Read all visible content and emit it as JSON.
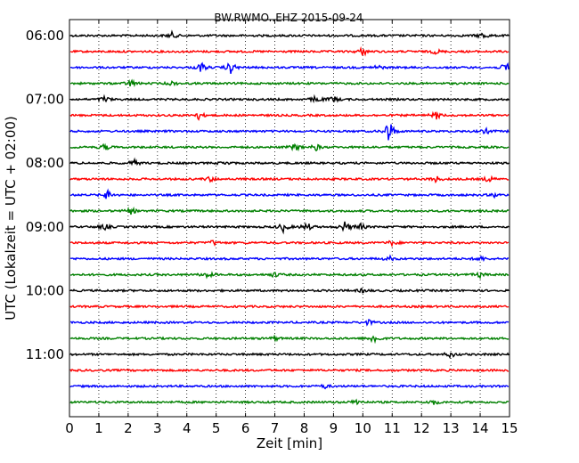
{
  "chart_data": {
    "type": "line",
    "title": "BW.RWMO..EHZ 2015-09-24",
    "xlabel": "Zeit  [min]",
    "ylabel": "UTC (Lokalzeit = UTC + 02:00)",
    "xlim": [
      0,
      15
    ],
    "x_ticks": [
      "0",
      "1",
      "2",
      "3",
      "4",
      "5",
      "6",
      "7",
      "8",
      "9",
      "10",
      "11",
      "12",
      "13",
      "14",
      "15"
    ],
    "y_tick_labels": [
      "06:00",
      "07:00",
      "08:00",
      "09:00",
      "10:00",
      "11:00"
    ],
    "grid": "vertical dotted",
    "trace_interval_min": 15,
    "colors": [
      "#000000",
      "#ff0000",
      "#0000ff",
      "#008000"
    ],
    "series": [
      {
        "start": "06:00",
        "events": [
          [
            3.5,
            0.5
          ],
          [
            14.1,
            0.6
          ]
        ]
      },
      {
        "start": "06:15",
        "events": [
          [
            10.0,
            0.7
          ],
          [
            12.5,
            0.4
          ]
        ]
      },
      {
        "start": "06:30",
        "events": [
          [
            4.5,
            0.8
          ],
          [
            5.5,
            1.0
          ],
          [
            14.9,
            0.9
          ],
          [
            10.5,
            0.4
          ]
        ]
      },
      {
        "start": "06:45",
        "events": [
          [
            2.1,
            0.6
          ],
          [
            3.5,
            0.3
          ]
        ]
      },
      {
        "start": "07:00",
        "events": [
          [
            1.2,
            0.5
          ],
          [
            8.4,
            0.6
          ],
          [
            9.0,
            0.5
          ]
        ]
      },
      {
        "start": "07:15",
        "events": [
          [
            4.4,
            0.6
          ],
          [
            12.5,
            0.6
          ]
        ]
      },
      {
        "start": "07:30",
        "events": [
          [
            10.9,
            2.0
          ],
          [
            14.2,
            0.4
          ]
        ]
      },
      {
        "start": "07:45",
        "events": [
          [
            1.2,
            0.5
          ],
          [
            7.7,
            0.6
          ],
          [
            8.4,
            0.5
          ]
        ]
      },
      {
        "start": "08:00",
        "events": [
          [
            2.2,
            0.5
          ],
          [
            5.3,
            0.3
          ]
        ]
      },
      {
        "start": "08:15",
        "events": [
          [
            4.8,
            0.4
          ],
          [
            12.5,
            0.5
          ],
          [
            14.3,
            0.5
          ]
        ]
      },
      {
        "start": "08:30",
        "events": [
          [
            1.3,
            0.8
          ],
          [
            14.5,
            0.3
          ]
        ]
      },
      {
        "start": "08:45",
        "events": [
          [
            2.1,
            0.5
          ]
        ]
      },
      {
        "start": "09:00",
        "events": [
          [
            7.3,
            0.8
          ],
          [
            8.1,
            0.7
          ],
          [
            9.4,
            0.9
          ],
          [
            9.9,
            0.6
          ],
          [
            1.2,
            0.5
          ]
        ]
      },
      {
        "start": "09:15",
        "events": [
          [
            4.9,
            0.4
          ],
          [
            11.0,
            0.4
          ]
        ]
      },
      {
        "start": "09:30",
        "events": [
          [
            10.9,
            0.4
          ],
          [
            14.0,
            0.4
          ]
        ]
      },
      {
        "start": "09:45",
        "events": [
          [
            4.7,
            0.5
          ],
          [
            7.0,
            0.4
          ],
          [
            14.0,
            0.4
          ]
        ]
      },
      {
        "start": "10:00",
        "events": [
          [
            10.0,
            0.3
          ]
        ]
      },
      {
        "start": "10:15",
        "events": []
      },
      {
        "start": "10:30",
        "events": [
          [
            10.2,
            0.4
          ]
        ]
      },
      {
        "start": "10:45",
        "events": [
          [
            10.4,
            0.9
          ],
          [
            7.0,
            0.3
          ]
        ]
      },
      {
        "start": "11:00",
        "events": [
          [
            13.0,
            0.5
          ]
        ]
      },
      {
        "start": "11:15",
        "events": []
      },
      {
        "start": "11:30",
        "events": [
          [
            8.7,
            0.3
          ]
        ]
      },
      {
        "start": "11:45",
        "events": [
          [
            9.8,
            0.5
          ],
          [
            12.4,
            0.4
          ]
        ]
      }
    ]
  }
}
